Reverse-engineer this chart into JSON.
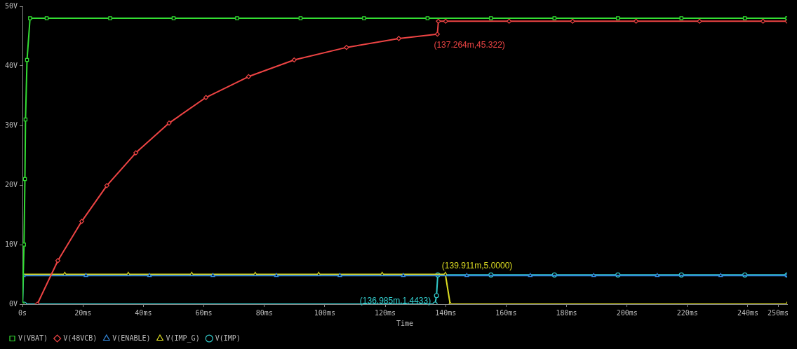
{
  "chart_data": {
    "type": "line",
    "xlabel": "Time",
    "xlim": [
      0,
      253
    ],
    "ylim": [
      0,
      50
    ],
    "xticks": [
      {
        "value": 0,
        "label": "0s"
      },
      {
        "value": 20,
        "label": "20ms"
      },
      {
        "value": 40,
        "label": "40ms"
      },
      {
        "value": 60,
        "label": "60ms"
      },
      {
        "value": 80,
        "label": "80ms"
      },
      {
        "value": 100,
        "label": "100ms"
      },
      {
        "value": 120,
        "label": "120ms"
      },
      {
        "value": 140,
        "label": "140ms"
      },
      {
        "value": 160,
        "label": "160ms"
      },
      {
        "value": 180,
        "label": "180ms"
      },
      {
        "value": 200,
        "label": "200ms"
      },
      {
        "value": 220,
        "label": "220ms"
      },
      {
        "value": 240,
        "label": "240ms"
      },
      {
        "value": 250,
        "label": "250ms"
      }
    ],
    "yticks": [
      {
        "value": 0,
        "label": "0V"
      },
      {
        "value": 10,
        "label": "10V"
      },
      {
        "value": 20,
        "label": "20V"
      },
      {
        "value": 30,
        "label": "30V"
      },
      {
        "value": 40,
        "label": "40V"
      },
      {
        "value": 50,
        "label": "50V"
      }
    ],
    "grid": false,
    "legend": "bottom",
    "annotations": [
      {
        "text": "(137.264m,45.322)",
        "x": 137.264,
        "y": 45.322
      },
      {
        "text": "(139.911m,5.0000)",
        "x": 139.911,
        "y": 5
      },
      {
        "text": "(136.985m,1.4433)",
        "x": 136.985,
        "y": 1.4433
      }
    ],
    "series": [
      {
        "name": "V(VBAT)",
        "color": "#33dd33",
        "marker": "square",
        "x": [
          0,
          0.5,
          0.8,
          1,
          1.5,
          2.5,
          8,
          29,
          50,
          71,
          92,
          113,
          134,
          155,
          176,
          197,
          218,
          239,
          253
        ],
        "values": [
          0,
          10,
          21,
          31,
          41,
          48,
          48,
          48,
          48,
          48,
          48,
          48,
          48,
          48,
          48,
          48,
          48,
          48,
          48
        ]
      },
      {
        "name": "V(48VCB)",
        "color": "#ee4444",
        "marker": "diamond",
        "x": [
          4.9,
          11.7,
          19.6,
          27.9,
          37.5,
          48.5,
          60.7,
          74.8,
          89.9,
          107.2,
          124.5,
          137.264,
          137.6,
          140,
          161,
          182,
          203,
          224,
          245,
          253
        ],
        "values": [
          0,
          7.3,
          13.9,
          19.9,
          25.4,
          30.4,
          34.7,
          38.2,
          41,
          43.1,
          44.6,
          45.322,
          47.5,
          47.5,
          47.5,
          47.5,
          47.5,
          47.5,
          47.5,
          47.5
        ]
      },
      {
        "name": "V(ENABLE)",
        "color": "#3388dd",
        "marker": "triangle",
        "x": [
          0,
          0.3,
          21,
          42,
          63,
          84,
          105,
          126,
          147,
          168,
          189,
          210,
          231,
          253
        ],
        "values": [
          0,
          4.8,
          4.8,
          4.8,
          4.8,
          4.8,
          4.8,
          4.8,
          4.8,
          4.8,
          4.8,
          4.8,
          4.8,
          4.8
        ]
      },
      {
        "name": "V(IMP_G)",
        "color": "#dddd22",
        "marker": "triangle",
        "x": [
          0,
          14,
          35,
          56,
          77,
          98,
          119,
          139.911,
          141.5,
          253
        ],
        "values": [
          5,
          5,
          5,
          5,
          5,
          5,
          5,
          5,
          0,
          0
        ]
      },
      {
        "name": "V(IMP)",
        "color": "#33cccc",
        "marker": "circle",
        "x": [
          0,
          0.6,
          136.5,
          136.985,
          137.4,
          155,
          176,
          197,
          218,
          239,
          253
        ],
        "values": [
          0,
          0,
          0,
          1.4433,
          4.9,
          4.9,
          4.9,
          4.9,
          4.9,
          4.9,
          4.9
        ]
      }
    ]
  }
}
